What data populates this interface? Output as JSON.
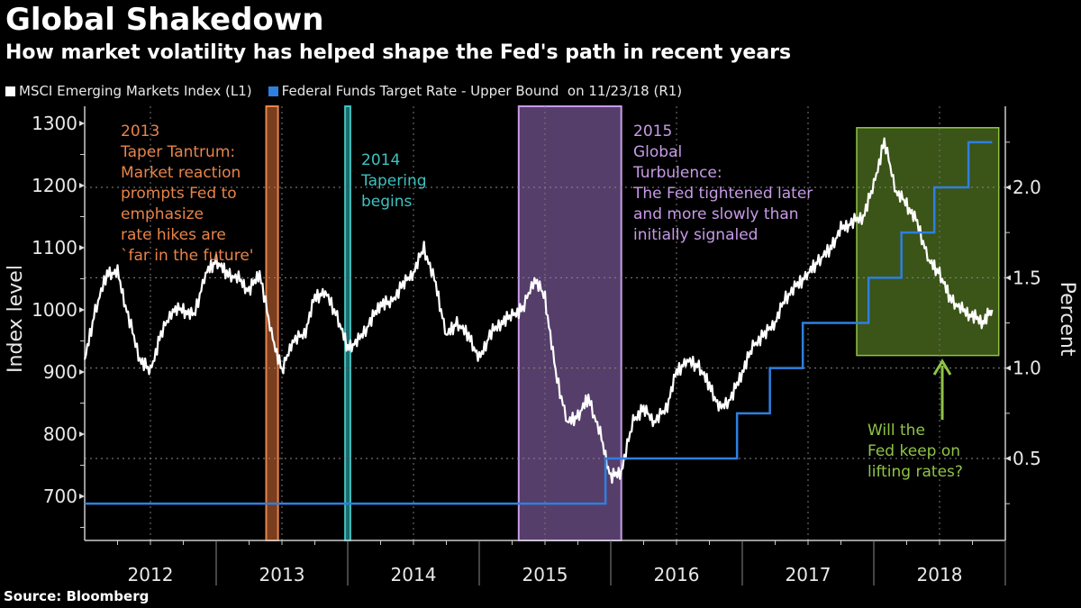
{
  "header": {
    "title": "Global Shakedown",
    "subtitle": "How market volatility has helped shape the Fed's path in recent years"
  },
  "legend": [
    {
      "label": "MSCI Emerging Markets Index (L1)",
      "color": "#ffffff"
    },
    {
      "label": "Federal Funds Target Rate - Upper Bound  on 11/23/18 (R1)",
      "color": "#2f7fe0"
    }
  ],
  "footer": {
    "source": "Source: Bloomberg"
  },
  "chart_data": {
    "type": "line",
    "title": "Global Shakedown",
    "subtitle": "How market volatility has helped shape the Fed's path in recent years",
    "x_ticks": [
      "2012",
      "2013",
      "2014",
      "2015",
      "2016",
      "2017",
      "2018"
    ],
    "x_range": [
      2012.0,
      2018.95
    ],
    "left_axis": {
      "label": "Index level",
      "range": [
        620,
        1330
      ],
      "ticks": [
        700,
        800,
        900,
        1000,
        1100,
        1200,
        1300
      ]
    },
    "right_axis": {
      "label": "Percent",
      "range": [
        -0.075,
        2.4
      ],
      "ticks": [
        "0.5",
        "1.0",
        "1.5",
        "2.0"
      ],
      "tick_values": [
        0.5,
        1.0,
        1.5,
        2.0
      ]
    },
    "grid": true,
    "legend_position": "top-left",
    "series": [
      {
        "name": "MSCI Emerging Markets Index (L1)",
        "axis": "left",
        "color": "#ffffff",
        "x": [
          2012.0,
          2012.08,
          2012.17,
          2012.25,
          2012.33,
          2012.42,
          2012.5,
          2012.58,
          2012.67,
          2012.75,
          2012.83,
          2012.92,
          2013.0,
          2013.08,
          2013.17,
          2013.25,
          2013.33,
          2013.42,
          2013.5,
          2013.58,
          2013.67,
          2013.75,
          2013.83,
          2013.92,
          2014.0,
          2014.08,
          2014.17,
          2014.25,
          2014.33,
          2014.42,
          2014.5,
          2014.58,
          2014.67,
          2014.75,
          2014.83,
          2014.92,
          2015.0,
          2015.08,
          2015.17,
          2015.25,
          2015.33,
          2015.42,
          2015.5,
          2015.58,
          2015.67,
          2015.75,
          2015.83,
          2015.92,
          2016.0,
          2016.08,
          2016.17,
          2016.25,
          2016.33,
          2016.42,
          2016.5,
          2016.58,
          2016.67,
          2016.75,
          2016.83,
          2016.92,
          2017.0,
          2017.08,
          2017.17,
          2017.25,
          2017.33,
          2017.42,
          2017.5,
          2017.58,
          2017.67,
          2017.75,
          2017.83,
          2017.92,
          2018.0,
          2018.08,
          2018.17,
          2018.25,
          2018.33,
          2018.42,
          2018.5,
          2018.58,
          2018.67,
          2018.75,
          2018.83,
          2018.9
        ],
        "values": [
          920,
          1000,
          1060,
          1060,
          990,
          920,
          900,
          960,
          1000,
          1000,
          990,
          1060,
          1080,
          1060,
          1050,
          1030,
          1060,
          960,
          900,
          950,
          960,
          1020,
          1030,
          990,
          940,
          950,
          980,
          1010,
          1010,
          1040,
          1060,
          1100,
          1040,
          960,
          980,
          960,
          920,
          960,
          980,
          990,
          1000,
          1050,
          1020,
          900,
          820,
          830,
          860,
          800,
          730,
          740,
          820,
          840,
          820,
          840,
          900,
          920,
          910,
          880,
          840,
          860,
          900,
          940,
          960,
          980,
          1020,
          1040,
          1060,
          1080,
          1100,
          1130,
          1140,
          1150,
          1200,
          1270,
          1190,
          1170,
          1140,
          1080,
          1060,
          1020,
          1000,
          990,
          980,
          1000
        ]
      },
      {
        "name": "Federal Funds Target Rate - Upper Bound on 11/23/18 (R1)",
        "axis": "right",
        "color": "#2f7fe0",
        "x": [
          2012.0,
          2015.96,
          2016.96,
          2017.21,
          2017.46,
          2017.96,
          2018.21,
          2018.46,
          2018.72,
          2018.9
        ],
        "values": [
          0.25,
          0.5,
          0.75,
          1.0,
          1.25,
          1.5,
          1.75,
          2.0,
          2.25,
          2.25
        ]
      }
    ],
    "annotations": [
      {
        "type": "band",
        "from": 2013.38,
        "to": 2013.47,
        "color": "#e8844a",
        "fill": "#7a3d1e",
        "text": [
          "2013",
          "Taper Tantrum:",
          "Market reaction",
          "prompts Fed to",
          "emphasize",
          "rate hikes are",
          "`far in the future'"
        ]
      },
      {
        "type": "band",
        "from": 2013.98,
        "to": 2014.02,
        "color": "#3fc1c0",
        "fill": "#1c6a6a",
        "text": [
          "2014",
          "Tapering",
          "begins"
        ]
      },
      {
        "type": "band",
        "from": 2015.3,
        "to": 2016.08,
        "color": "#c79be8",
        "fill": "#563e6a",
        "text": [
          "2015",
          "Global",
          "Turbulence:",
          "The Fed tightened later",
          "and more slowly than",
          "initially signaled"
        ]
      },
      {
        "type": "box",
        "from": 2017.87,
        "to": 2018.95,
        "y_from_percent": 1.07,
        "y_to_percent": 2.33,
        "color": "#8fc446",
        "fill": "#3b5418",
        "text": [
          "Will the",
          "Fed keep on",
          "lifting rates?"
        ]
      }
    ]
  }
}
